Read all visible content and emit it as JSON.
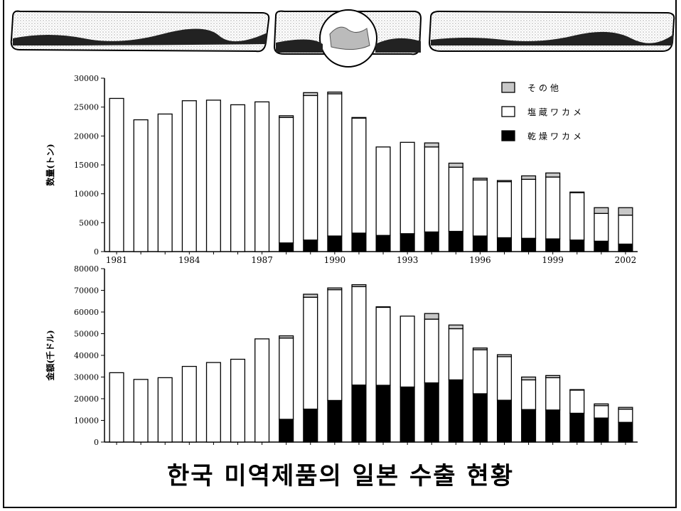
{
  "chart_data": [
    {
      "type": "bar",
      "stacked": true,
      "ylabel": "数量(トン)",
      "ylim": [
        0,
        30000
      ],
      "yticks": [
        0,
        5000,
        10000,
        15000,
        20000,
        25000,
        30000
      ],
      "ytick_labels": [
        "0",
        "5000",
        "10000",
        "15000",
        "20000",
        "25000",
        "30000"
      ],
      "categories": [
        "1981",
        "1982",
        "1983",
        "1984",
        "1985",
        "1986",
        "1987",
        "1988",
        "1989",
        "1990",
        "1991",
        "1992",
        "1993",
        "1994",
        "1995",
        "1996",
        "1997",
        "1998",
        "1999",
        "2000",
        "2001",
        "2002"
      ],
      "xtick_labels": [
        "1981",
        "1984",
        "1987",
        "1990",
        "1993",
        "1996",
        "1999",
        "2002"
      ],
      "legend_position": "top-right",
      "series": [
        {
          "name": "乾燥ワカメ",
          "color": "#000000",
          "values": [
            0,
            0,
            0,
            0,
            0,
            0,
            0,
            1500,
            2000,
            2700,
            3200,
            2800,
            3100,
            3400,
            3500,
            2700,
            2400,
            2300,
            2200,
            2000,
            1800,
            1300
          ]
        },
        {
          "name": "塩蔵ワカメ",
          "color": "#ffffff",
          "values": [
            26500,
            22800,
            23800,
            26100,
            26200,
            25400,
            25900,
            21700,
            25000,
            24600,
            19900,
            15300,
            15800,
            14700,
            11100,
            9700,
            9700,
            10200,
            10700,
            8200,
            4800,
            5000
          ]
        },
        {
          "name": "その他",
          "color": "#c8c8c8",
          "values": [
            0,
            0,
            0,
            0,
            0,
            0,
            0,
            300,
            500,
            300,
            100,
            0,
            0,
            700,
            700,
            300,
            200,
            600,
            700,
            100,
            1000,
            1300
          ]
        }
      ]
    },
    {
      "type": "bar",
      "stacked": true,
      "ylabel": "金額(千ドル)",
      "ylim": [
        0,
        80000
      ],
      "yticks": [
        0,
        10000,
        20000,
        30000,
        40000,
        50000,
        60000,
        70000,
        80000
      ],
      "ytick_labels": [
        "0",
        "10000",
        "20000",
        "30000",
        "40000",
        "50000",
        "60000",
        "70000",
        "80000"
      ],
      "categories": [
        "1981",
        "1982",
        "1983",
        "1984",
        "1985",
        "1986",
        "1987",
        "1988",
        "1989",
        "1990",
        "1991",
        "1992",
        "1993",
        "1994",
        "1995",
        "1996",
        "1997",
        "1998",
        "1999",
        "2000",
        "2001",
        "2002"
      ],
      "series": [
        {
          "name": "乾燥ワカメ",
          "color": "#000000",
          "values": [
            0,
            0,
            0,
            0,
            0,
            0,
            0,
            10500,
            15200,
            19200,
            26300,
            26200,
            25400,
            27300,
            28700,
            22300,
            19300,
            15000,
            14800,
            13300,
            11100,
            9100
          ]
        },
        {
          "name": "塩蔵ワカメ",
          "color": "#ffffff",
          "values": [
            32000,
            28900,
            29700,
            34900,
            36700,
            38200,
            47600,
            37500,
            51600,
            51100,
            45400,
            36000,
            32700,
            29400,
            23600,
            20300,
            20100,
            13700,
            14900,
            10700,
            5700,
            6100
          ]
        },
        {
          "name": "その他",
          "color": "#c8c8c8",
          "values": [
            0,
            0,
            0,
            0,
            0,
            0,
            0,
            1000,
            1400,
            800,
            900,
            200,
            0,
            2600,
            1700,
            800,
            900,
            1300,
            1000,
            200,
            800,
            800
          ]
        }
      ]
    }
  ],
  "caption": "한국 미역제품의 일본 수출 현황"
}
